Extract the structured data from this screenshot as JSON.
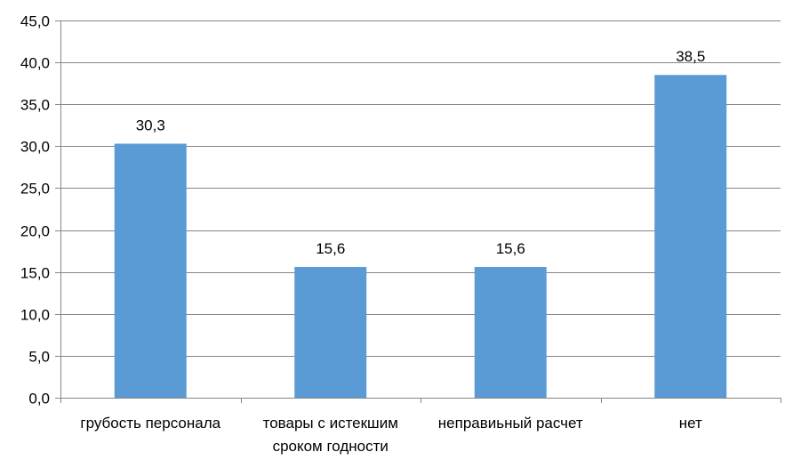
{
  "chart_data": {
    "type": "bar",
    "categories": [
      [
        "грубость персонала"
      ],
      [
        "товары с истекшим",
        "сроком годности"
      ],
      [
        "неправиьный расчет"
      ],
      [
        "нет"
      ]
    ],
    "values": [
      30.3,
      15.6,
      15.6,
      38.5
    ],
    "data_labels": [
      "30,3",
      "15,6",
      "15,6",
      "38,5"
    ],
    "ylim": [
      0,
      45
    ],
    "y_ticks": [
      "0,0",
      "5,0",
      "10,0",
      "15,0",
      "20,0",
      "25,0",
      "30,0",
      "35,0",
      "40,0",
      "45,0"
    ],
    "y_tick_values": [
      0,
      5,
      10,
      15,
      20,
      25,
      30,
      35,
      40,
      45
    ],
    "title": "",
    "xlabel": "",
    "ylabel": "",
    "grid": true,
    "legend": "none",
    "colors": {
      "bar": "#5b9bd5",
      "grid": "#868686",
      "axis": "#868686"
    }
  }
}
